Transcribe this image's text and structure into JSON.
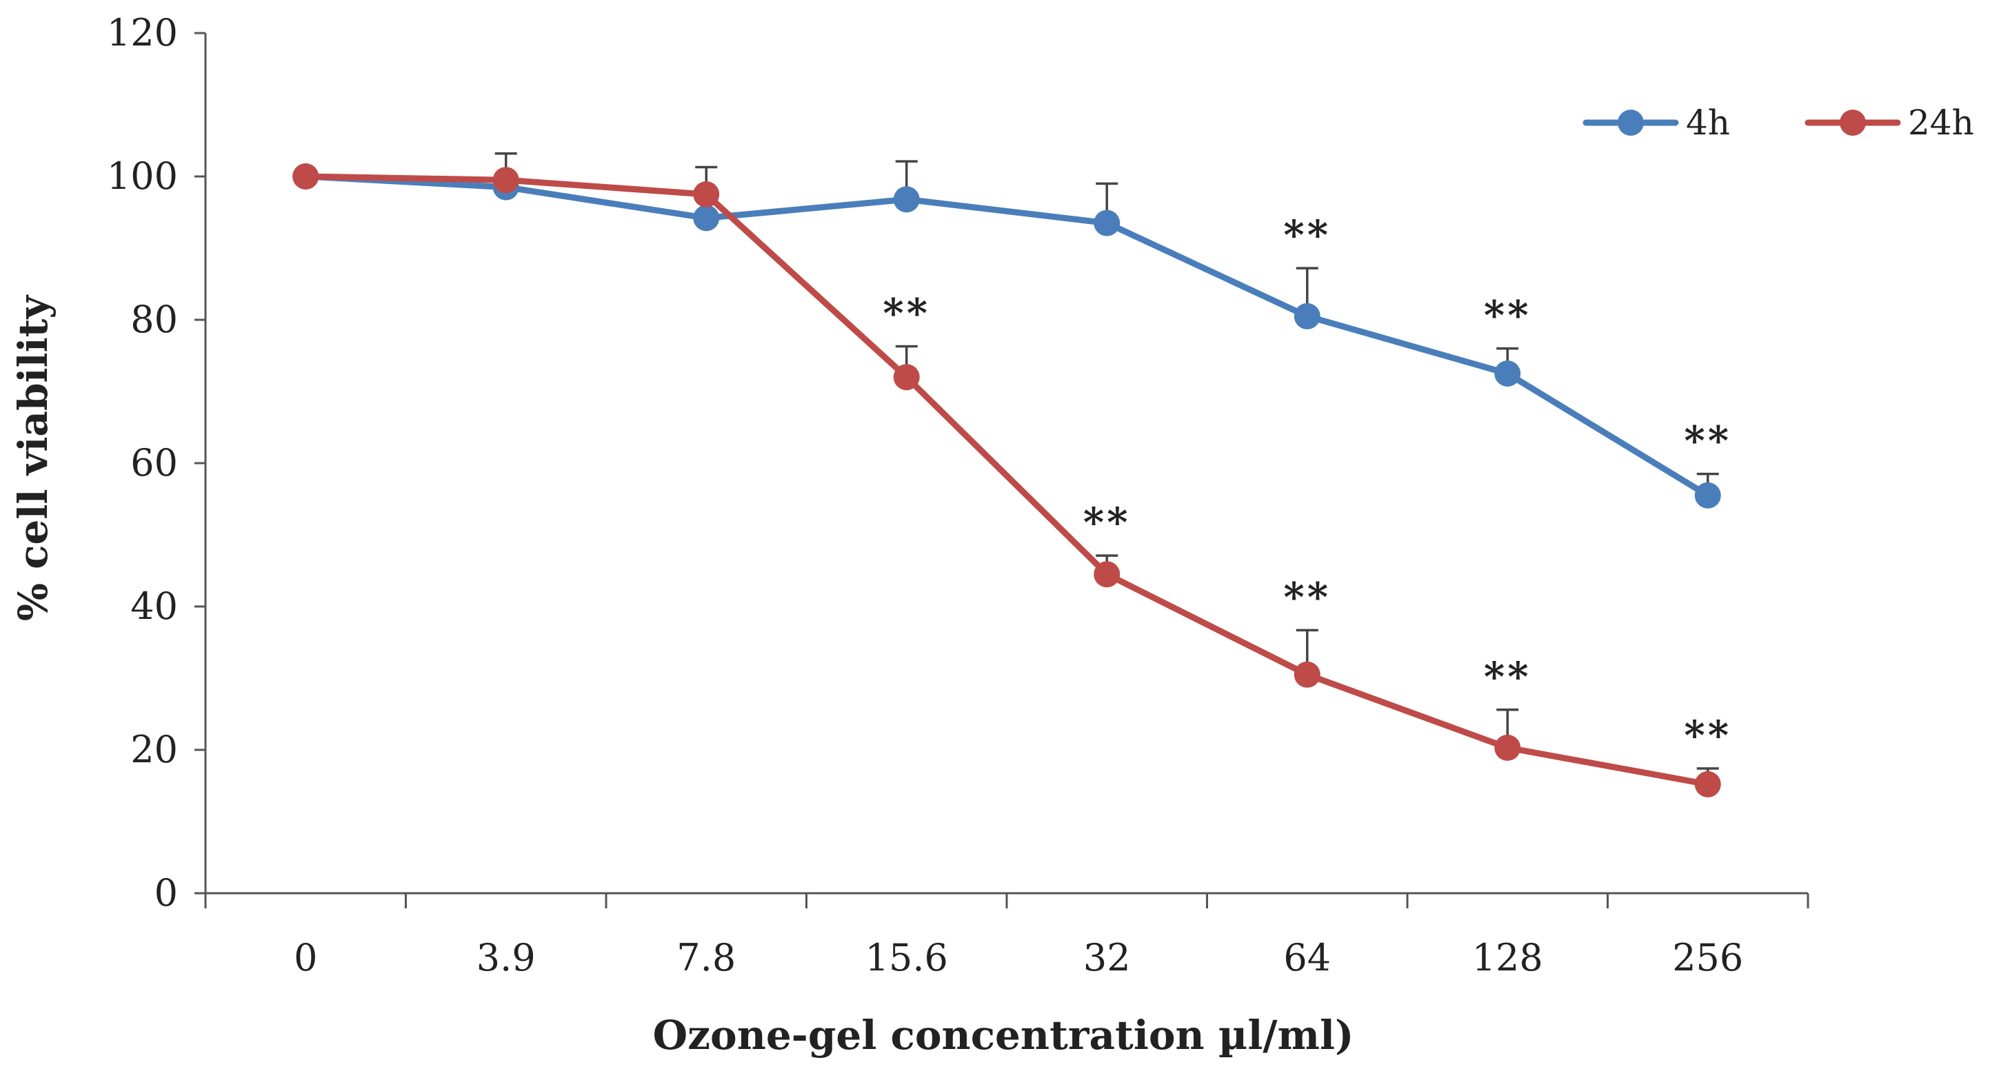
{
  "chart_data": {
    "type": "line",
    "title": "",
    "xlabel": "Ozone-gel concentration µl/ml)",
    "ylabel": "% cell viability",
    "categories": [
      "0",
      "3.9",
      "7.8",
      "15.6",
      "32",
      "64",
      "128",
      "256"
    ],
    "ylim": [
      0,
      120
    ],
    "yticks": [
      0,
      20,
      40,
      60,
      80,
      100,
      120
    ],
    "grid": false,
    "legend_position": "top-right",
    "series": [
      {
        "name": "4h",
        "color": "#4a7ebb",
        "values": [
          100,
          98.5,
          94.2,
          96.8,
          93.5,
          80.5,
          72.5,
          55.5
        ],
        "errors": [
          0,
          4.7,
          0,
          5.3,
          5.5,
          6.7,
          3.5,
          3.0
        ],
        "annotations": [
          "",
          "",
          "",
          "",
          "",
          "**",
          "**",
          "**"
        ]
      },
      {
        "name": "24h",
        "color": "#be4b48",
        "values": [
          100,
          99.5,
          97.5,
          72,
          44.5,
          30.5,
          20.3,
          15.2
        ],
        "errors": [
          0,
          0,
          3.8,
          4.3,
          2.6,
          6.2,
          5.3,
          2.2
        ],
        "annotations": [
          "",
          "",
          "",
          "**",
          "**",
          "**",
          "**",
          "**"
        ]
      }
    ]
  }
}
